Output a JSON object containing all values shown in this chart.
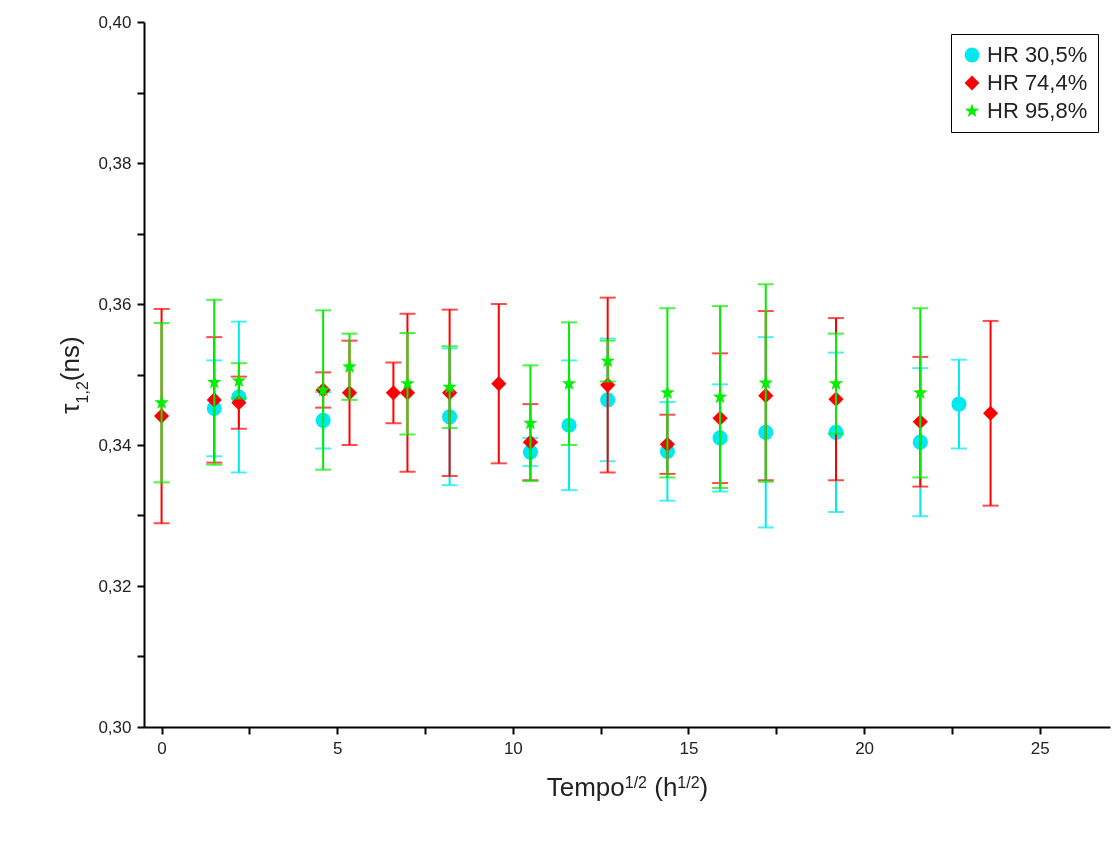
{
  "chart_data": {
    "type": "scatter",
    "xlabel": "Tempo$^{1/2}$ (h$^{1/2}$)",
    "ylabel": "τ$_{1,2}$(ns)",
    "xlim": [
      -0.5,
      27
    ],
    "ylim": [
      0.3,
      0.4
    ],
    "xticks": [
      0,
      {
        "value": 2.5,
        "label": null
      },
      5,
      {
        "value": 7.5,
        "label": null
      },
      10,
      {
        "value": 12.5,
        "label": null
      },
      15,
      {
        "value": 17.5,
        "label": null
      },
      20,
      {
        "value": 22.5,
        "label": null
      },
      25
    ],
    "yticks": [
      {
        "value": 0.3,
        "label": "0,30"
      },
      {
        "value": 0.31,
        "label": null
      },
      {
        "value": 0.32,
        "label": "0,32"
      },
      {
        "value": 0.33,
        "label": null
      },
      {
        "value": 0.34,
        "label": "0,34"
      },
      {
        "value": 0.35,
        "label": null
      },
      {
        "value": 0.36,
        "label": "0,36"
      },
      {
        "value": 0.37,
        "label": null
      },
      {
        "value": 0.38,
        "label": "0,38"
      },
      {
        "value": 0.39,
        "label": null
      },
      {
        "value": 0.4,
        "label": "0,40"
      }
    ],
    "legend": "top right",
    "grid": false,
    "series": [
      {
        "name": "HR 30,5%",
        "color": "#00e8f0",
        "marker": "circle",
        "x": [
          1.5,
          2.2,
          4.6,
          5.35,
          7.0,
          8.2,
          10.5,
          11.6,
          12.7,
          14.4,
          15.9,
          17.2,
          19.2,
          21.6,
          22.7
        ],
        "values": [
          0.3452,
          0.3468,
          0.3435,
          null,
          null,
          0.344,
          0.339,
          0.3428,
          0.3464,
          0.3391,
          0.341,
          0.3418,
          0.3418,
          0.3404,
          0.3458
        ],
        "errors": [
          0.0068,
          0.0107,
          0.004,
          null,
          null,
          0.0097,
          0.002,
          0.0092,
          0.0087,
          0.007,
          0.0076,
          0.0135,
          0.0113,
          0.0105,
          0.0063
        ]
      },
      {
        "name": "HR 74,4%",
        "color": "#ff0000",
        "marker": "diamond",
        "x": [
          0,
          1.5,
          2.2,
          4.6,
          5.35,
          6.6,
          7.0,
          8.2,
          9.6,
          10.5,
          12.7,
          14.4,
          15.9,
          17.2,
          19.2,
          21.6,
          23.6
        ],
        "values": [
          0.3441,
          0.3464,
          0.346,
          0.3478,
          0.3474,
          0.3474,
          0.3474,
          0.3474,
          0.3487,
          0.3404,
          0.3485,
          0.3401,
          0.3438,
          0.347,
          0.3465,
          0.3433,
          0.3445
        ],
        "errors": [
          0.0152,
          0.0089,
          0.0037,
          0.0025,
          0.0074,
          0.0043,
          0.0112,
          0.0118,
          0.0113,
          0.0054,
          0.0124,
          0.0042,
          0.0092,
          0.012,
          0.0115,
          0.0092,
          0.0131
        ]
      },
      {
        "name": "HR 95,8%",
        "color": "#00ee00",
        "marker": "star",
        "x": [
          0,
          1.5,
          2.2,
          4.6,
          5.35,
          7.0,
          8.2,
          10.5,
          11.6,
          12.7,
          14.4,
          15.9,
          17.2,
          19.2,
          21.6
        ],
        "values": [
          0.346,
          0.3489,
          0.3491,
          0.3478,
          0.3511,
          0.3487,
          0.3482,
          0.3431,
          0.3487,
          0.3519,
          0.3474,
          0.3468,
          0.3488,
          0.3487,
          0.3474
        ],
        "errors": [
          0.0113,
          0.0117,
          0.0025,
          0.0113,
          0.0047,
          0.0072,
          0.0058,
          0.0082,
          0.0087,
          0.0029,
          0.012,
          0.0129,
          0.014,
          0.0071,
          0.012
        ]
      }
    ]
  }
}
